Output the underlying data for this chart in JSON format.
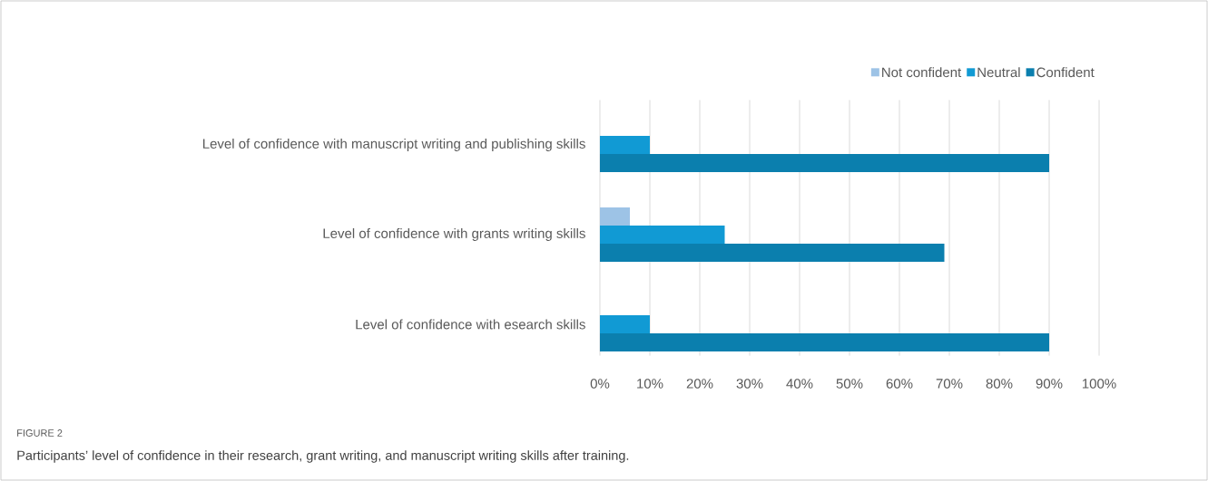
{
  "chart_data": {
    "type": "bar",
    "orientation": "horizontal",
    "categories": [
      "Level of confidence with manuscript writing and publishing skills",
      "Level of confidence with grants writing skills",
      "Level of confidence with esearch skills"
    ],
    "series": [
      {
        "name": "Not confident",
        "color": "#9dc3e6",
        "values": [
          null,
          6,
          null
        ]
      },
      {
        "name": "Neutral",
        "color": "#119ad4",
        "values": [
          10,
          25,
          10
        ]
      },
      {
        "name": "Confident",
        "color": "#0b7fae",
        "values": [
          90,
          69,
          90
        ]
      }
    ],
    "xlim": [
      0,
      100
    ],
    "xticks": [
      {
        "value": 0,
        "label": "0%"
      },
      {
        "value": 10,
        "label": "10%"
      },
      {
        "value": 20,
        "label": "20%"
      },
      {
        "value": 30,
        "label": "30%"
      },
      {
        "value": 40,
        "label": "40%"
      },
      {
        "value": 50,
        "label": "50%"
      },
      {
        "value": 60,
        "label": "60%"
      },
      {
        "value": 70,
        "label": "70%"
      },
      {
        "value": 80,
        "label": "80%"
      },
      {
        "value": 90,
        "label": "90%"
      },
      {
        "value": 100,
        "label": "100%"
      }
    ],
    "grid": "x",
    "legend": "top right",
    "annotations": [
      "FIGURE 2",
      "Participants’ level of confidence in their research, grant writing, and manuscript writing skills after training."
    ]
  }
}
